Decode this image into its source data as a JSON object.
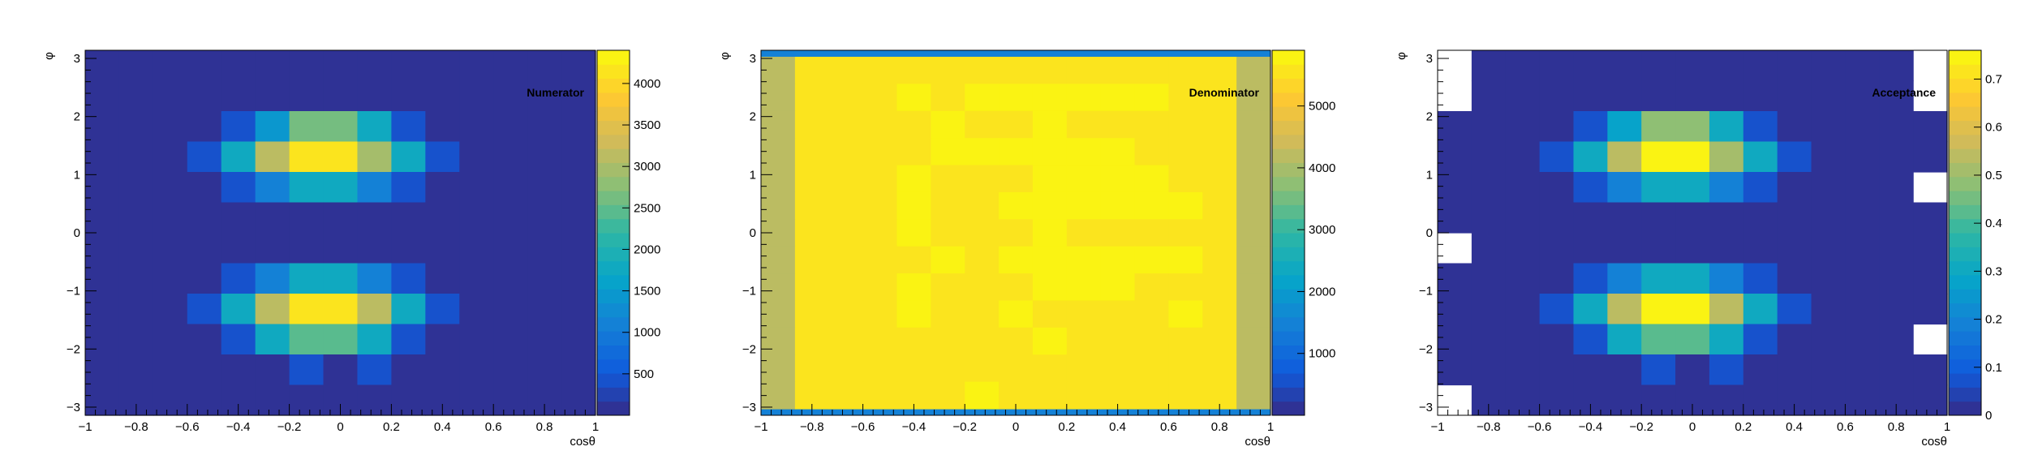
{
  "chart_data": [
    {
      "type": "heatmap",
      "title": "Numerator",
      "xlabel": "cosθ",
      "ylabel": "φ",
      "xlim": [
        -1,
        1
      ],
      "ylim": [
        -3.14,
        3.14
      ],
      "x_ticks": [
        {
          "value": -1,
          "label": "−1"
        },
        {
          "value": -0.8,
          "label": "−0.8"
        },
        {
          "value": -0.6,
          "label": "−0.6"
        },
        {
          "value": -0.4,
          "label": "−0.4"
        },
        {
          "value": -0.2,
          "label": "−0.2"
        },
        {
          "value": 0,
          "label": "0"
        },
        {
          "value": 0.2,
          "label": "0.2"
        },
        {
          "value": 0.4,
          "label": "0.4"
        },
        {
          "value": 0.6,
          "label": "0.6"
        },
        {
          "value": 0.8,
          "label": "0.8"
        },
        {
          "value": 1,
          "label": "1"
        }
      ],
      "y_ticks": [
        {
          "value": -3,
          "label": "−3"
        },
        {
          "value": -2,
          "label": "−2"
        },
        {
          "value": -1,
          "label": "−1"
        },
        {
          "value": 0,
          "label": "0"
        },
        {
          "value": 1,
          "label": "1"
        },
        {
          "value": 2,
          "label": "2"
        },
        {
          "value": 3,
          "label": "3"
        }
      ],
      "z_range": [
        0,
        4400
      ],
      "z_ticks": [
        {
          "value": 500,
          "label": "500"
        },
        {
          "value": 1000,
          "label": "1000"
        },
        {
          "value": 1500,
          "label": "1500"
        },
        {
          "value": 2000,
          "label": "2000"
        },
        {
          "value": 2500,
          "label": "2500"
        },
        {
          "value": 3000,
          "label": "3000"
        },
        {
          "value": 3500,
          "label": "3500"
        },
        {
          "value": 4000,
          "label": "4000"
        }
      ],
      "z_grid": [
        [
          1,
          30,
          35,
          40,
          40,
          40,
          40,
          40,
          40,
          40,
          40,
          40,
          40,
          35,
          30
        ],
        [
          1,
          40,
          40,
          40,
          40,
          40,
          40,
          40,
          40,
          40,
          40,
          40,
          40,
          40,
          1
        ],
        [
          40,
          40,
          40,
          40,
          400,
          1500,
          2600,
          2600,
          1800,
          400,
          40,
          40,
          40,
          40,
          40
        ],
        [
          40,
          40,
          40,
          400,
          1800,
          3100,
          4200,
          4200,
          2900,
          1800,
          400,
          40,
          40,
          40,
          40
        ],
        [
          40,
          40,
          40,
          40,
          400,
          1100,
          1800,
          1800,
          1100,
          400,
          40,
          40,
          40,
          40,
          1
        ],
        [
          40,
          40,
          40,
          40,
          40,
          40,
          40,
          40,
          40,
          40,
          40,
          40,
          40,
          40,
          40
        ],
        [
          1,
          40,
          40,
          40,
          40,
          40,
          40,
          40,
          40,
          40,
          40,
          40,
          40,
          40,
          40
        ],
        [
          40,
          40,
          40,
          40,
          400,
          1100,
          1800,
          1800,
          1100,
          400,
          40,
          40,
          40,
          40,
          40
        ],
        [
          40,
          40,
          40,
          400,
          1800,
          3100,
          4200,
          4200,
          3100,
          1800,
          400,
          40,
          40,
          40,
          40
        ],
        [
          40,
          40,
          40,
          40,
          400,
          1800,
          2500,
          2500,
          1800,
          400,
          40,
          40,
          40,
          40,
          1
        ],
        [
          40,
          40,
          40,
          40,
          40,
          40,
          400,
          40,
          400,
          40,
          40,
          40,
          40,
          40,
          40
        ],
        [
          1,
          30,
          40,
          40,
          40,
          40,
          40,
          40,
          40,
          40,
          40,
          40,
          40,
          40,
          40
        ]
      ]
    },
    {
      "type": "heatmap",
      "title": "Denominator",
      "xlabel": "cosθ",
      "ylabel": "φ",
      "xlim": [
        -1,
        1
      ],
      "ylim": [
        -3.14,
        3.14
      ],
      "x_ticks": [
        {
          "value": -1,
          "label": "−1"
        },
        {
          "value": -0.8,
          "label": "−0.8"
        },
        {
          "value": -0.6,
          "label": "−0.6"
        },
        {
          "value": -0.4,
          "label": "−0.4"
        },
        {
          "value": -0.2,
          "label": "−0.2"
        },
        {
          "value": 0,
          "label": "0"
        },
        {
          "value": 0.2,
          "label": "0.2"
        },
        {
          "value": 0.4,
          "label": "0.4"
        },
        {
          "value": 0.6,
          "label": "0.6"
        },
        {
          "value": 0.8,
          "label": "0.8"
        },
        {
          "value": 1,
          "label": "1"
        }
      ],
      "y_ticks": [
        {
          "value": -3,
          "label": "−3"
        },
        {
          "value": -2,
          "label": "−2"
        },
        {
          "value": -1,
          "label": "−1"
        },
        {
          "value": 0,
          "label": "0"
        },
        {
          "value": 1,
          "label": "1"
        },
        {
          "value": 2,
          "label": "2"
        },
        {
          "value": 3,
          "label": "3"
        }
      ],
      "z_range": [
        0,
        5900
      ],
      "z_ticks": [
        {
          "value": 1000,
          "label": "1000"
        },
        {
          "value": 2000,
          "label": "2000"
        },
        {
          "value": 3000,
          "label": "3000"
        },
        {
          "value": 4000,
          "label": "4000"
        },
        {
          "value": 5000,
          "label": "5000"
        }
      ],
      "z_grid": [
        [
          4300,
          5500,
          5500,
          5500,
          5600,
          5600,
          5600,
          5600,
          5500,
          5600,
          5600,
          5600,
          5600,
          5500,
          4300
        ],
        [
          4300,
          5500,
          5600,
          5600,
          5700,
          5600,
          5700,
          5700,
          5700,
          5700,
          5700,
          5700,
          5600,
          5500,
          4300
        ],
        [
          4300,
          5600,
          5600,
          5600,
          5600,
          5700,
          5600,
          5600,
          5700,
          5600,
          5600,
          5600,
          5600,
          5600,
          4300
        ],
        [
          4300,
          5600,
          5600,
          5600,
          5600,
          5700,
          5700,
          5700,
          5700,
          5700,
          5700,
          5600,
          5600,
          5600,
          4300
        ],
        [
          4300,
          5600,
          5600,
          5600,
          5700,
          5600,
          5600,
          5600,
          5700,
          5700,
          5700,
          5700,
          5600,
          5600,
          4300
        ],
        [
          4300,
          5500,
          5600,
          5600,
          5700,
          5600,
          5600,
          5700,
          5700,
          5700,
          5700,
          5700,
          5700,
          5600,
          4300
        ],
        [
          4300,
          5600,
          5600,
          5600,
          5700,
          5600,
          5600,
          5600,
          5700,
          5600,
          5600,
          5600,
          5600,
          5600,
          4300
        ],
        [
          4300,
          5600,
          5600,
          5600,
          5600,
          5700,
          5600,
          5700,
          5700,
          5700,
          5700,
          5700,
          5700,
          5600,
          4300
        ],
        [
          4300,
          5600,
          5600,
          5600,
          5700,
          5600,
          5600,
          5600,
          5700,
          5700,
          5700,
          5600,
          5600,
          5600,
          4300
        ],
        [
          4300,
          5600,
          5600,
          5600,
          5700,
          5600,
          5600,
          5700,
          5600,
          5600,
          5600,
          5600,
          5700,
          5600,
          4300
        ],
        [
          4300,
          5600,
          5600,
          5600,
          5600,
          5600,
          5600,
          5600,
          5700,
          5600,
          5600,
          5600,
          5600,
          5600,
          4300
        ],
        [
          4300,
          5600,
          5500,
          5500,
          5600,
          5600,
          5600,
          5600,
          5500,
          5600,
          5600,
          5600,
          5600,
          5500,
          4300
        ],
        [
          4300,
          5600,
          5500,
          5600,
          5600,
          5600,
          5700,
          5600,
          5600,
          5600,
          5600,
          5600,
          5600,
          5600,
          4300
        ]
      ],
      "z_grid_edges": {
        "bottom_strip": 1400,
        "top_strip": 1400
      }
    },
    {
      "type": "heatmap",
      "title": "Acceptance",
      "xlabel": "cosθ",
      "ylabel": "φ",
      "xlim": [
        -1,
        1
      ],
      "ylim": [
        -3.14,
        3.14
      ],
      "x_ticks": [
        {
          "value": -1,
          "label": "−1"
        },
        {
          "value": -0.8,
          "label": "−0.8"
        },
        {
          "value": -0.6,
          "label": "−0.6"
        },
        {
          "value": -0.4,
          "label": "−0.4"
        },
        {
          "value": -0.2,
          "label": "−0.2"
        },
        {
          "value": 0,
          "label": "0"
        },
        {
          "value": 0.2,
          "label": "0.2"
        },
        {
          "value": 0.4,
          "label": "0.4"
        },
        {
          "value": 0.6,
          "label": "0.6"
        },
        {
          "value": 0.8,
          "label": "0.8"
        },
        {
          "value": 1,
          "label": "1"
        }
      ],
      "y_ticks": [
        {
          "value": -3,
          "label": "−3"
        },
        {
          "value": -2,
          "label": "−2"
        },
        {
          "value": -1,
          "label": "−1"
        },
        {
          "value": 0,
          "label": "0"
        },
        {
          "value": 1,
          "label": "1"
        },
        {
          "value": 2,
          "label": "2"
        },
        {
          "value": 3,
          "label": "3"
        }
      ],
      "z_range": [
        0,
        0.76
      ],
      "z_ticks": [
        {
          "value": 0,
          "label": "0"
        },
        {
          "value": 0.1,
          "label": "0.1"
        },
        {
          "value": 0.2,
          "label": "0.2"
        },
        {
          "value": 0.3,
          "label": "0.3"
        },
        {
          "value": 0.4,
          "label": "0.4"
        },
        {
          "value": 0.5,
          "label": "0.5"
        },
        {
          "value": 0.6,
          "label": "0.6"
        },
        {
          "value": 0.7,
          "label": "0.7"
        }
      ],
      "z_grid": [
        [
          -1,
          0.005,
          0.006,
          0.007,
          0.007,
          0.007,
          0.007,
          0.007,
          0.007,
          0.007,
          0.007,
          0.007,
          0.007,
          0.006,
          -1
        ],
        [
          -1,
          0.007,
          0.007,
          0.007,
          0.007,
          0.007,
          0.007,
          0.007,
          0.007,
          0.007,
          0.007,
          0.007,
          0.007,
          0.007,
          -1
        ],
        [
          0.007,
          0.007,
          0.007,
          0.007,
          0.07,
          0.27,
          0.47,
          0.47,
          0.32,
          0.07,
          0.007,
          0.007,
          0.007,
          0.007,
          0.007
        ],
        [
          0.007,
          0.007,
          0.007,
          0.07,
          0.32,
          0.55,
          0.74,
          0.74,
          0.52,
          0.32,
          0.07,
          0.007,
          0.007,
          0.007,
          0.007
        ],
        [
          0.007,
          0.007,
          0.007,
          0.007,
          0.07,
          0.2,
          0.3,
          0.3,
          0.2,
          0.07,
          0.007,
          0.007,
          0.007,
          0.007,
          -1
        ],
        [
          0.007,
          0.007,
          0.007,
          0.007,
          0.007,
          0.007,
          0.007,
          0.007,
          0.007,
          0.007,
          0.007,
          0.007,
          0.007,
          0.007,
          0.007
        ],
        [
          -1,
          0.007,
          0.007,
          0.007,
          0.007,
          0.007,
          0.007,
          0.007,
          0.007,
          0.007,
          0.007,
          0.007,
          0.007,
          0.007,
          0.007
        ],
        [
          0.007,
          0.007,
          0.007,
          0.007,
          0.07,
          0.2,
          0.3,
          0.3,
          0.2,
          0.07,
          0.007,
          0.007,
          0.007,
          0.007,
          0.007
        ],
        [
          0.007,
          0.007,
          0.007,
          0.07,
          0.32,
          0.55,
          0.74,
          0.74,
          0.55,
          0.32,
          0.07,
          0.007,
          0.007,
          0.007,
          0.007
        ],
        [
          0.007,
          0.007,
          0.007,
          0.007,
          0.07,
          0.32,
          0.43,
          0.43,
          0.32,
          0.07,
          0.007,
          0.007,
          0.007,
          0.007,
          -1
        ],
        [
          0.007,
          0.007,
          0.007,
          0.007,
          0.007,
          0.007,
          0.07,
          0.007,
          0.07,
          0.007,
          0.007,
          0.007,
          0.007,
          0.007,
          0.007
        ],
        [
          -1,
          0.005,
          0.007,
          0.007,
          0.007,
          0.007,
          0.007,
          0.007,
          0.007,
          0.007,
          0.007,
          0.007,
          0.007,
          0.007,
          0.007
        ]
      ]
    }
  ]
}
